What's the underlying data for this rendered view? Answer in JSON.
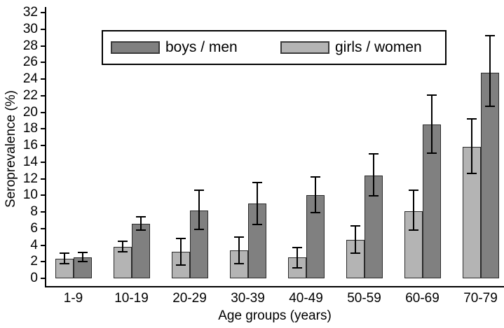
{
  "chart_data": {
    "type": "bar",
    "title": "",
    "xlabel": "Age groups (years)",
    "ylabel": "Seroprevalence (%)",
    "ylim": [
      0,
      32
    ],
    "ytick_step": 2,
    "grid": false,
    "legend_position": "top-center",
    "error_bars": true,
    "categories": [
      "1-9",
      "10-19",
      "20-29",
      "30-39",
      "40-49",
      "50-59",
      "60-69",
      "70-79"
    ],
    "series": [
      {
        "name": "boys / men",
        "color": "#808080",
        "values": [
          2.5,
          6.6,
          8.2,
          9.0,
          10.0,
          12.4,
          18.5,
          24.8
        ],
        "ci_low": [
          2.0,
          5.8,
          5.9,
          6.5,
          7.9,
          9.9,
          15.1,
          20.7
        ],
        "ci_high": [
          3.1,
          7.4,
          10.6,
          11.5,
          12.2,
          15.0,
          22.1,
          29.2
        ]
      },
      {
        "name": "girls / women",
        "color": "#b4b4b4",
        "values": [
          2.4,
          3.8,
          3.2,
          3.4,
          2.5,
          4.6,
          8.1,
          15.8
        ],
        "ci_low": [
          1.8,
          3.2,
          1.6,
          1.8,
          1.3,
          3.0,
          5.8,
          12.6
        ],
        "ci_high": [
          3.0,
          4.5,
          4.8,
          5.0,
          3.7,
          6.3,
          10.6,
          19.2
        ]
      }
    ]
  },
  "colors": {
    "bar_border": "#2b2b2b",
    "error_bar": "#000000",
    "axis": "#000000",
    "background": "#ffffff"
  }
}
